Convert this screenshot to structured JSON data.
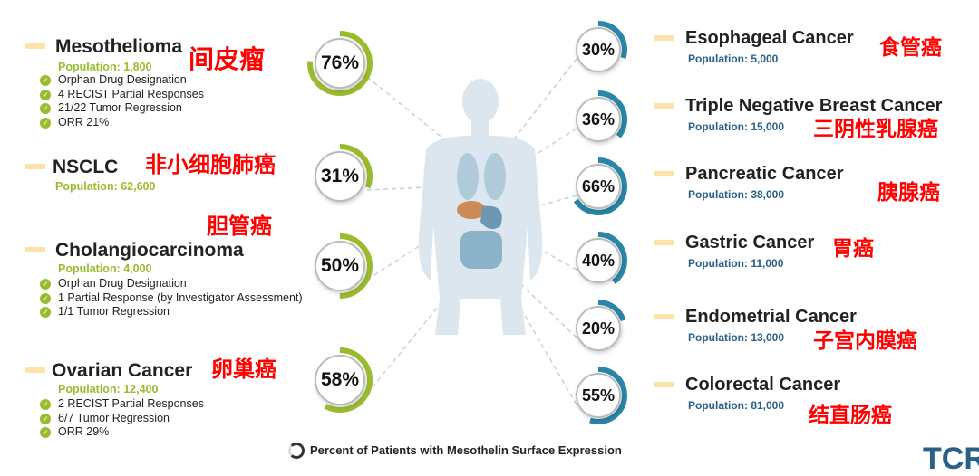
{
  "left": [
    {
      "name": "Mesothelioma",
      "cn": "间皮瘤",
      "population": "Population: 1,800",
      "pct": "76%",
      "bullets": [
        "Orphan Drug Designation",
        "4 RECIST Partial Responses",
        "21/22 Tumor Regression",
        "ORR 21%"
      ]
    },
    {
      "name": "NSCLC",
      "cn": "非小细胞肺癌",
      "population": "Population: 62,600",
      "pct": "31%",
      "bullets": []
    },
    {
      "name": "Cholangiocarcinoma",
      "cn": "胆管癌",
      "population": "Population: 4,000",
      "pct": "50%",
      "bullets": [
        "Orphan Drug Designation",
        "1 Partial Response (by Investigator Assessment)",
        "1/1 Tumor Regression"
      ]
    },
    {
      "name": "Ovarian Cancer",
      "cn": "卵巢癌",
      "population": "Population: 12,400",
      "pct": "58%",
      "bullets": [
        "2 RECIST Partial Responses",
        "6/7 Tumor Regression",
        "ORR 29%"
      ]
    }
  ],
  "right": [
    {
      "name": "Esophageal Cancer",
      "cn": "食管癌",
      "population": "Population: 5,000",
      "pct": "30%"
    },
    {
      "name": "Triple Negative Breast Cancer",
      "cn": "三阴性乳腺癌",
      "population": "Population: 15,000",
      "pct": "36%"
    },
    {
      "name": "Pancreatic Cancer",
      "cn": "胰腺癌",
      "population": "Population: 38,000",
      "pct": "66%"
    },
    {
      "name": "Gastric Cancer",
      "cn": "胃癌",
      "population": "Population: 11,000",
      "pct": "40%"
    },
    {
      "name": "Endometrial Cancer",
      "cn": "子宫内膜癌",
      "population": "Population: 13,000",
      "pct": "20%"
    },
    {
      "name": "Colorectal Cancer",
      "cn": "结直肠癌",
      "population": "Population: 81,000",
      "pct": "55%"
    }
  ],
  "legend": "Percent of Patients with Mesothelin Surface Expression",
  "logo": "TCR",
  "colors": {
    "left_accent": "#9bbb2f",
    "right_accent": "#2a86a8",
    "cn_label": "#ff0000",
    "bar": "#fde3a7",
    "right_pop": "#2a5f86"
  }
}
